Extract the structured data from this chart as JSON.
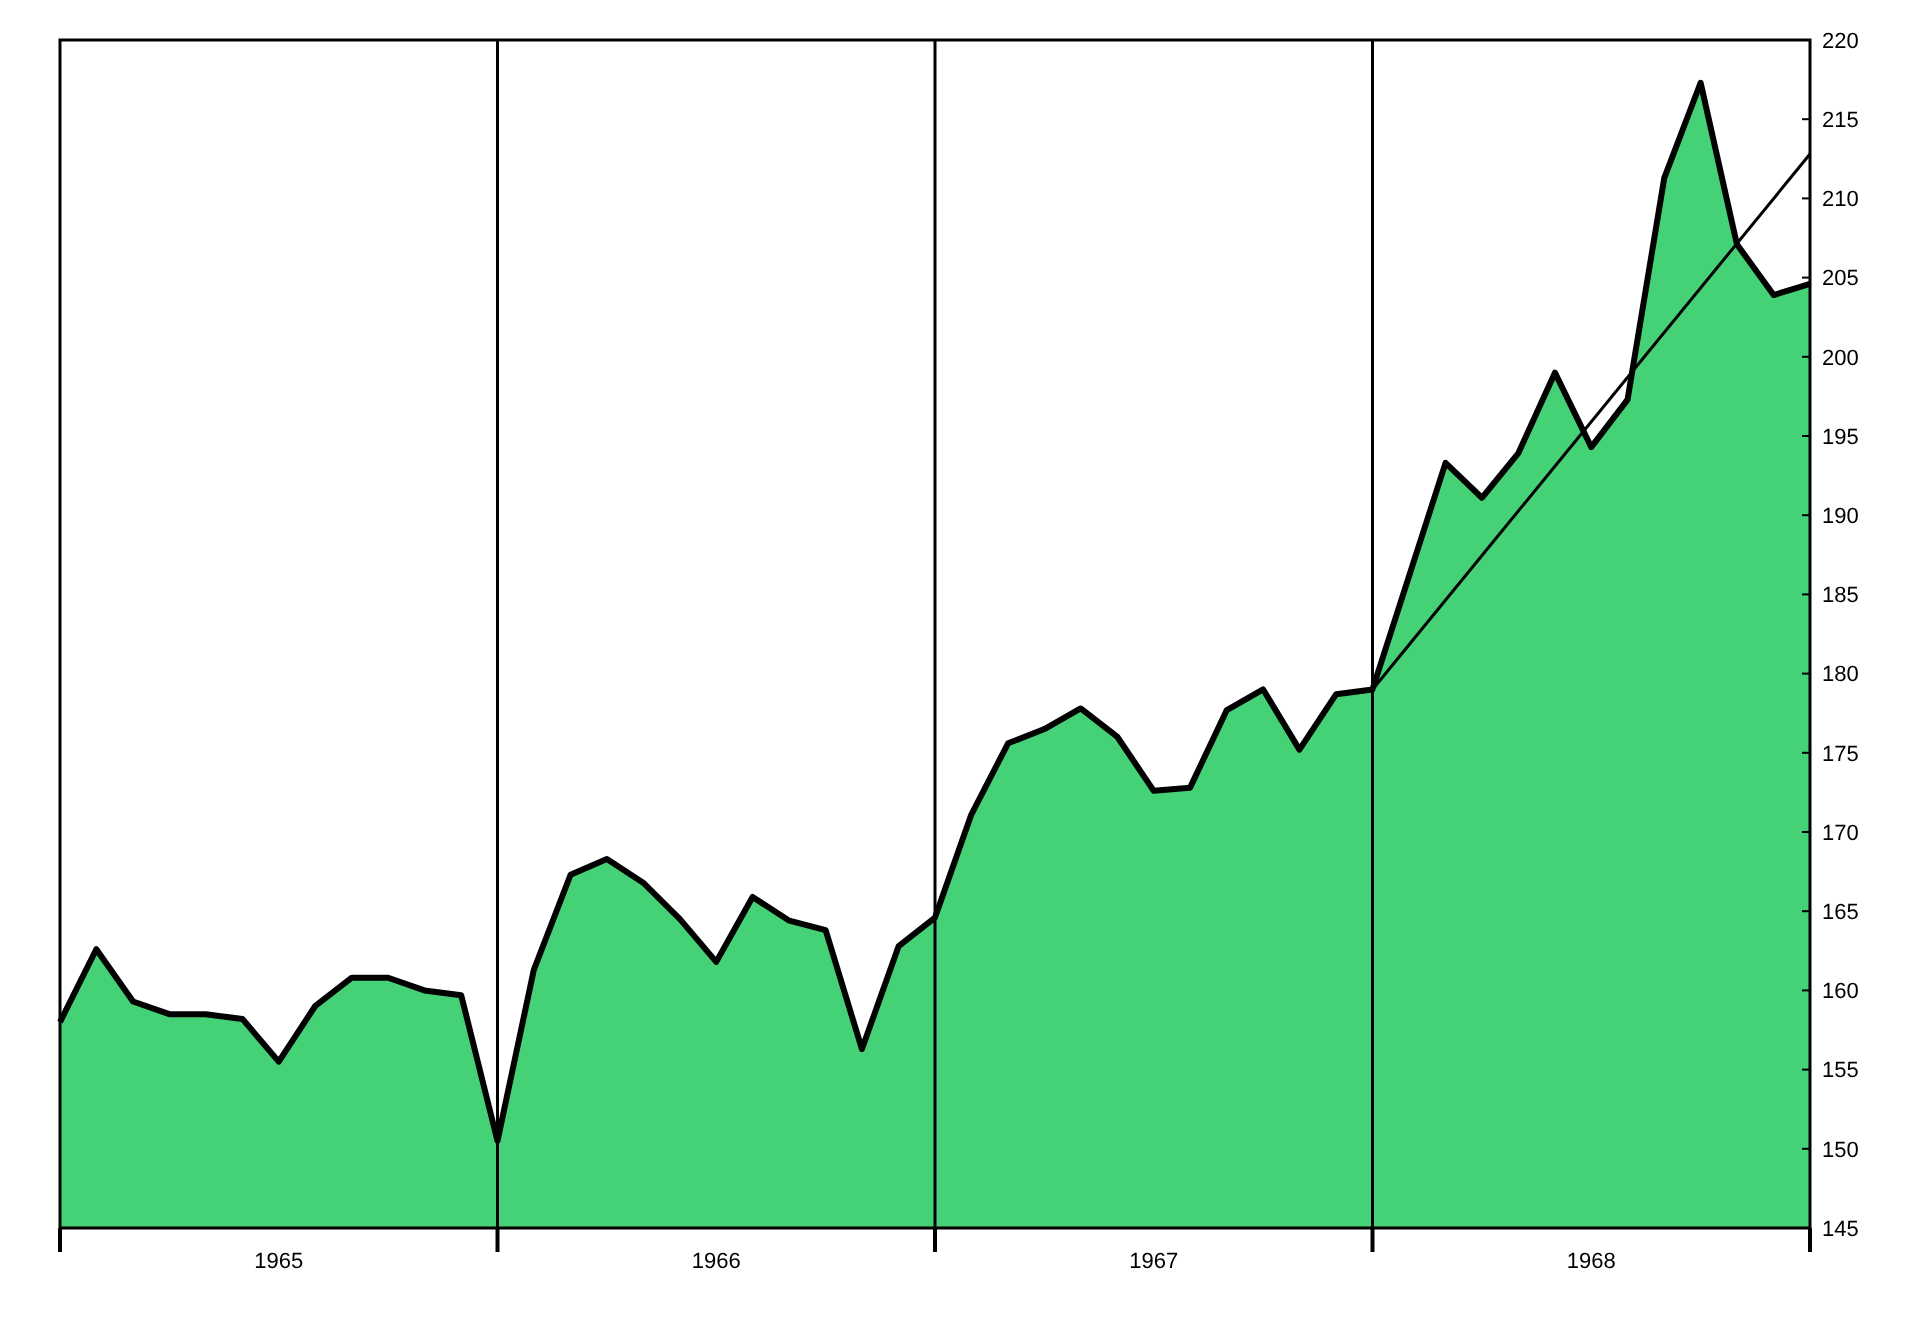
{
  "chart_data": {
    "type": "area",
    "xlim": [
      1965,
      1969
    ],
    "xticks": [
      {
        "value": 1965,
        "label": null
      },
      {
        "value": 1965.5,
        "label": "1965"
      },
      {
        "value": 1966,
        "label": null
      },
      {
        "value": 1966.5,
        "label": "1966"
      },
      {
        "value": 1967,
        "label": null
      },
      {
        "value": 1967.5,
        "label": "1967"
      },
      {
        "value": 1968,
        "label": null
      },
      {
        "value": 1968.5,
        "label": "1968"
      },
      {
        "value": 1969,
        "label": null
      }
    ],
    "ylim": [
      145,
      220
    ],
    "yticks": [
      145,
      150,
      155,
      160,
      165,
      170,
      175,
      180,
      185,
      190,
      195,
      200,
      205,
      210,
      215,
      220
    ],
    "ref_lines": [
      {
        "axis": "x",
        "value": 1966
      },
      {
        "axis": "x",
        "value": 1967
      },
      {
        "axis": "x",
        "value": 1968
      }
    ],
    "series": [
      {
        "color": "#45d175",
        "x": [
          1965,
          1965.083,
          1965.167,
          1965.25,
          1965.333,
          1965.417,
          1965.5,
          1965.583,
          1965.667,
          1965.75,
          1965.833,
          1965.917,
          1966,
          1966.083,
          1966.167,
          1966.25,
          1966.333,
          1966.417,
          1966.5,
          1966.583,
          1966.667,
          1966.75,
          1966.833,
          1966.917,
          1967,
          1967.083,
          1967.167,
          1967.25,
          1967.333,
          1967.417,
          1967.5,
          1967.583,
          1967.667,
          1967.75,
          1967.833,
          1967.917,
          1968,
          1968.167,
          1968.25,
          1968.333,
          1968.417,
          1968.5,
          1968.583,
          1968.667,
          1968.75,
          1968.833,
          1968.917,
          1969
        ],
        "values": [
          158,
          162.6,
          159.3,
          158.5,
          158.5,
          158.2,
          155.5,
          159,
          160.8,
          160.8,
          160,
          159.7,
          150.5,
          161.3,
          167.3,
          168.3,
          166.8,
          164.5,
          161.8,
          165.9,
          164.4,
          163.8,
          156.3,
          162.8,
          164.6,
          171.1,
          175.6,
          176.5,
          177.8,
          176,
          172.6,
          172.8,
          177.7,
          179,
          175.2,
          178.7,
          179,
          193.3,
          191.1,
          193.9,
          199,
          194.3,
          197.3,
          211.3,
          217.3,
          207.1,
          203.9,
          204.6
        ]
      },
      {
        "type": "line",
        "color": "#000000",
        "x": [
          1968,
          1969
        ],
        "values": [
          179,
          212.8
        ]
      }
    ]
  }
}
